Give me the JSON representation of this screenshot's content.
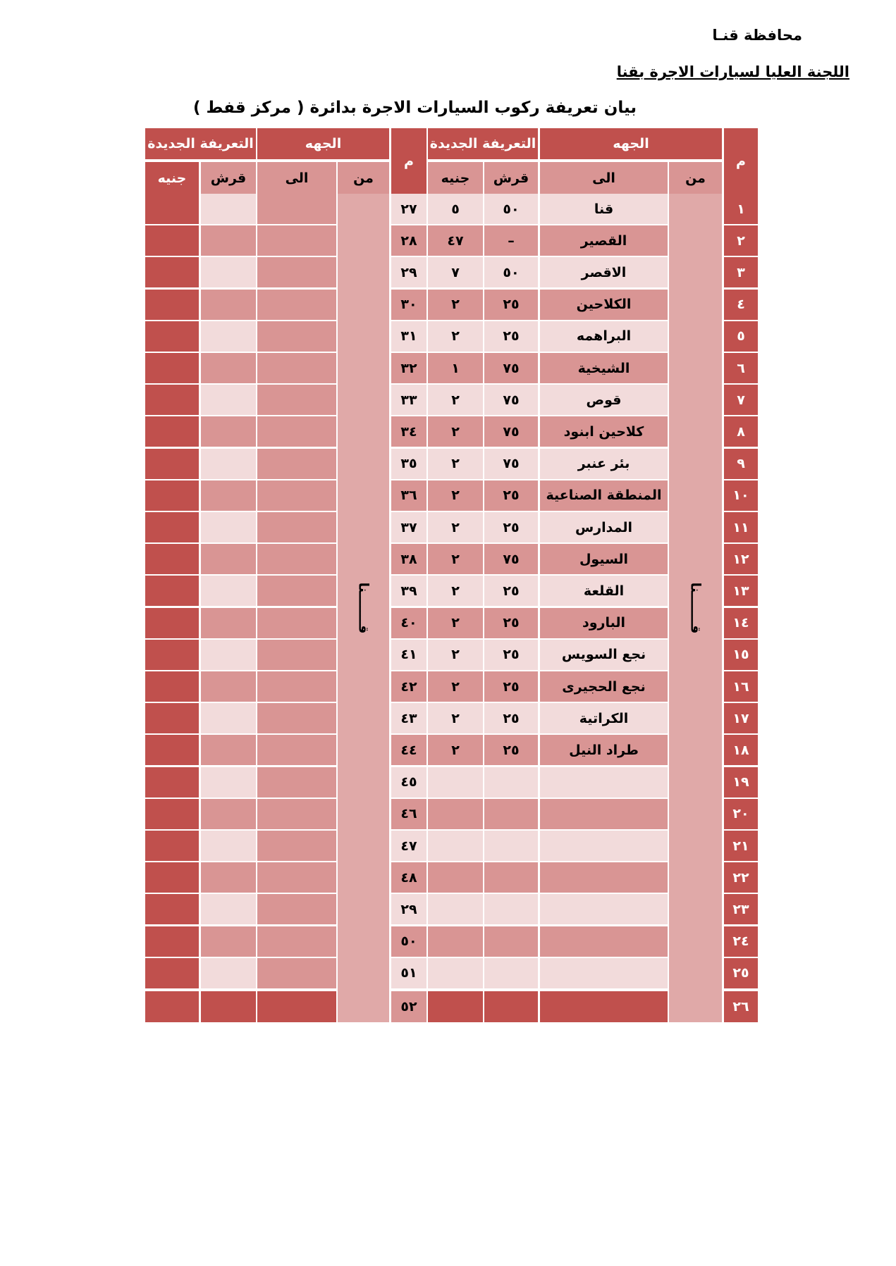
{
  "header": {
    "governorate": "محافظة قنـا",
    "committee": "اللجنة العليا لسيارات الاجرة بقنا",
    "title": "بيان تعريفة ركوب السيارات الاجرة بدائرة ( مركز قفط )"
  },
  "tables": [
    {
      "columns": {
        "n": "م",
        "destination": "الجهه",
        "fare": "التعريفة الجديدة",
        "from": "من",
        "to": "الى",
        "qirsh": "قرش",
        "geneih": "جنيه"
      },
      "from_value": "قـــــــنا",
      "rows": [
        {
          "n": "١",
          "to": "قنا",
          "qirsh": "٥٠",
          "geneih": "٥"
        },
        {
          "n": "٢",
          "to": "القصير",
          "qirsh": "–",
          "geneih": "٤٧"
        },
        {
          "n": "٣",
          "to": "الاقصر",
          "qirsh": "٥٠",
          "geneih": "٧"
        },
        {
          "n": "٤",
          "to": "الكلاحين",
          "qirsh": "٢٥",
          "geneih": "٢"
        },
        {
          "n": "٥",
          "to": "البراهمه",
          "qirsh": "٢٥",
          "geneih": "٢"
        },
        {
          "n": "٦",
          "to": "الشيخية",
          "qirsh": "٧٥",
          "geneih": "١"
        },
        {
          "n": "٧",
          "to": "قوص",
          "qirsh": "٧٥",
          "geneih": "٢"
        },
        {
          "n": "٨",
          "to": "كلاحين ابنود",
          "qirsh": "٧٥",
          "geneih": "٢"
        },
        {
          "n": "٩",
          "to": "بئر عنبر",
          "qirsh": "٧٥",
          "geneih": "٢"
        },
        {
          "n": "١٠",
          "to": "المنطقة الصناعية",
          "qirsh": "٢٥",
          "geneih": "٢"
        },
        {
          "n": "١١",
          "to": "المدارس",
          "qirsh": "٢٥",
          "geneih": "٢"
        },
        {
          "n": "١٢",
          "to": "السيول",
          "qirsh": "٧٥",
          "geneih": "٢"
        },
        {
          "n": "١٣",
          "to": "القلعة",
          "qirsh": "٢٥",
          "geneih": "٢"
        },
        {
          "n": "١٤",
          "to": "البارود",
          "qirsh": "٢٥",
          "geneih": "٢"
        },
        {
          "n": "١٥",
          "to": "نجع السويس",
          "qirsh": "٢٥",
          "geneih": "٢"
        },
        {
          "n": "١٦",
          "to": "نجع الحجيرى",
          "qirsh": "٢٥",
          "geneih": "٢"
        },
        {
          "n": "١٧",
          "to": "الكراتية",
          "qirsh": "٢٥",
          "geneih": "٢"
        },
        {
          "n": "١٨",
          "to": "طراد النيل",
          "qirsh": "٢٥",
          "geneih": "٢"
        },
        {
          "n": "١٩"
        },
        {
          "n": "٢٠"
        },
        {
          "n": "٢١"
        },
        {
          "n": "٢٢"
        },
        {
          "n": "٢٣"
        },
        {
          "n": "٢٤"
        },
        {
          "n": "٢٥"
        },
        {
          "n": "٢٦"
        }
      ]
    },
    {
      "columns": {
        "n": "م",
        "destination": "الجهه",
        "fare": "التعريفة الجديدة",
        "from": "من",
        "to": "الى",
        "qirsh": "قرش",
        "geneih": "جنيه"
      },
      "from_value": "قـــــــنا",
      "rows": [
        {
          "n": "٢٧"
        },
        {
          "n": "٢٨"
        },
        {
          "n": "٢٩"
        },
        {
          "n": "٣٠"
        },
        {
          "n": "٣١"
        },
        {
          "n": "٣٢"
        },
        {
          "n": "٣٣"
        },
        {
          "n": "٣٤"
        },
        {
          "n": "٣٥"
        },
        {
          "n": "٣٦"
        },
        {
          "n": "٣٧"
        },
        {
          "n": "٣٨"
        },
        {
          "n": "٣٩"
        },
        {
          "n": "٤٠"
        },
        {
          "n": "٤١"
        },
        {
          "n": "٤٢"
        },
        {
          "n": "٤٣"
        },
        {
          "n": "٤٤"
        },
        {
          "n": "٤٥"
        },
        {
          "n": "٤٦"
        },
        {
          "n": "٤٧"
        },
        {
          "n": "٤٨"
        },
        {
          "n": "٢٩"
        },
        {
          "n": "٥٠"
        },
        {
          "n": "٥١"
        },
        {
          "n": "٥٢"
        }
      ]
    }
  ]
}
